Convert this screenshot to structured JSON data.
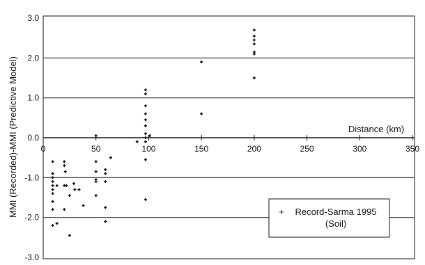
{
  "chart_data": {
    "type": "scatter",
    "title": "",
    "xlabel": "Distance (km)",
    "ylabel": "MMI (Recorded)-MMI (Predictive Model)",
    "xlim": [
      0,
      350
    ],
    "ylim": [
      -3.0,
      3.0
    ],
    "x_ticks": [
      0,
      50,
      100,
      150,
      200,
      250,
      300,
      350
    ],
    "x_tick_labels": [
      "0",
      "50",
      "100",
      "150",
      "200",
      "250",
      "300",
      "350"
    ],
    "y_ticks": [
      3.0,
      2.0,
      1.0,
      0.0,
      -1.0,
      -2.0,
      -3.0
    ],
    "y_tick_labels": [
      "3.0",
      "2.0",
      "1.0",
      "0.0",
      "-1.0",
      "-2.0",
      "-3.0"
    ],
    "grid": "horizontal",
    "x_axis_position": "y=0",
    "legend": {
      "position": "bottom-right",
      "label": "Record-Sarma 1995",
      "sublabel": "(Soil)",
      "marker": "+"
    },
    "colors": {
      "marker": "#111111",
      "grid": "#333333",
      "axis": "#111111",
      "background": "#ffffff"
    },
    "series": [
      {
        "name": "Record-Sarma 1995 (Soil)",
        "points": [
          {
            "x": 9,
            "y": -0.6
          },
          {
            "x": 9,
            "y": -0.9
          },
          {
            "x": 9,
            "y": -1.0
          },
          {
            "x": 9,
            "y": -1.1
          },
          {
            "x": 9,
            "y": -1.2
          },
          {
            "x": 9,
            "y": -1.3
          },
          {
            "x": 9,
            "y": -1.4
          },
          {
            "x": 9,
            "y": -1.6
          },
          {
            "x": 9,
            "y": -1.8
          },
          {
            "x": 9,
            "y": -2.2
          },
          {
            "x": 13,
            "y": -1.2
          },
          {
            "x": 13,
            "y": -2.15
          },
          {
            "x": 20,
            "y": -0.6
          },
          {
            "x": 20,
            "y": -0.7
          },
          {
            "x": 20,
            "y": -1.2
          },
          {
            "x": 20,
            "y": -1.8
          },
          {
            "x": 21,
            "y": -0.85
          },
          {
            "x": 22,
            "y": -1.2
          },
          {
            "x": 25,
            "y": -1.45
          },
          {
            "x": 25,
            "y": -2.45
          },
          {
            "x": 29,
            "y": -1.15
          },
          {
            "x": 30,
            "y": -1.3
          },
          {
            "x": 34,
            "y": -1.3
          },
          {
            "x": 38,
            "y": -1.7
          },
          {
            "x": 50,
            "y": 0.05
          },
          {
            "x": 50,
            "y": -0.6
          },
          {
            "x": 50,
            "y": -0.85
          },
          {
            "x": 50,
            "y": -1.05
          },
          {
            "x": 50,
            "y": -1.1
          },
          {
            "x": 50,
            "y": -1.45
          },
          {
            "x": 59,
            "y": -0.8
          },
          {
            "x": 59,
            "y": -0.9
          },
          {
            "x": 59,
            "y": -1.1
          },
          {
            "x": 59,
            "y": -1.75
          },
          {
            "x": 59,
            "y": -2.1
          },
          {
            "x": 64,
            "y": -0.5
          },
          {
            "x": 89,
            "y": -0.1
          },
          {
            "x": 97,
            "y": 1.2
          },
          {
            "x": 97,
            "y": 1.1
          },
          {
            "x": 97,
            "y": 0.8
          },
          {
            "x": 97,
            "y": 0.6
          },
          {
            "x": 97,
            "y": 0.45
          },
          {
            "x": 97,
            "y": 0.3
          },
          {
            "x": 97,
            "y": 0.1
          },
          {
            "x": 97,
            "y": 0.0
          },
          {
            "x": 97,
            "y": -0.1
          },
          {
            "x": 97,
            "y": -0.55
          },
          {
            "x": 97,
            "y": -1.55
          },
          {
            "x": 101,
            "y": 0.05
          },
          {
            "x": 150,
            "y": 1.9
          },
          {
            "x": 150,
            "y": 0.6
          },
          {
            "x": 200,
            "y": 2.7
          },
          {
            "x": 200,
            "y": 2.55
          },
          {
            "x": 200,
            "y": 2.45
          },
          {
            "x": 200,
            "y": 2.35
          },
          {
            "x": 200,
            "y": 2.15
          },
          {
            "x": 200,
            "y": 2.1
          },
          {
            "x": 200,
            "y": 1.5
          }
        ]
      }
    ]
  }
}
